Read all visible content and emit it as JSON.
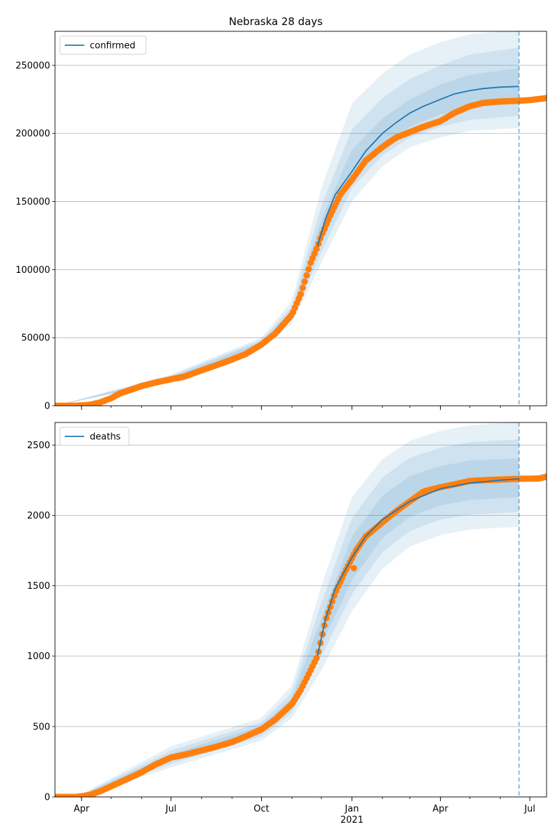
{
  "figure": {
    "title": "Nebraska 28 days"
  },
  "colors": {
    "line": "#1f77b4",
    "observed": "#ff7f0e",
    "band": "#1f77b4",
    "grid": "#b0b0b0",
    "axis": "#000000",
    "cutoff": "#1f77b4"
  },
  "chart_data": [
    {
      "type": "line",
      "panel": "top",
      "title": "Nebraska 28 days",
      "legend": {
        "label": "confirmed",
        "placement": "top-left"
      },
      "grid": "horizontal",
      "xlabel": "",
      "ylabel": "",
      "ylim": [
        0,
        275000
      ],
      "yticks": [
        0,
        50000,
        100000,
        150000,
        200000,
        250000
      ],
      "ytick_labels": [
        "0",
        "50000",
        "100000",
        "150000",
        "200000",
        "250000"
      ],
      "forecast_start": "2020-11-27",
      "forecast_end": "2021-06-20",
      "observed_end": "2021-07-18",
      "observed_series": [
        [
          "2020-03-05",
          0
        ],
        [
          "2020-03-20",
          30
        ],
        [
          "2020-04-01",
          250
        ],
        [
          "2020-04-10",
          800
        ],
        [
          "2020-04-20",
          2500
        ],
        [
          "2020-05-01",
          5500
        ],
        [
          "2020-05-10",
          9000
        ],
        [
          "2020-05-20",
          11500
        ],
        [
          "2020-06-01",
          14500
        ],
        [
          "2020-06-15",
          17000
        ],
        [
          "2020-07-01",
          19500
        ],
        [
          "2020-07-15",
          21500
        ],
        [
          "2020-08-01",
          26000
        ],
        [
          "2020-08-15",
          29500
        ],
        [
          "2020-09-01",
          34000
        ],
        [
          "2020-09-15",
          38000
        ],
        [
          "2020-10-01",
          45000
        ],
        [
          "2020-10-15",
          53000
        ],
        [
          "2020-11-01",
          67000
        ],
        [
          "2020-11-10",
          82000
        ],
        [
          "2020-11-20",
          105000
        ],
        [
          "2020-11-27",
          117000
        ],
        [
          "2020-12-01",
          125000
        ],
        [
          "2020-12-10",
          140000
        ],
        [
          "2020-12-20",
          155000
        ],
        [
          "2021-01-01",
          166000
        ],
        [
          "2021-01-15",
          180000
        ],
        [
          "2021-02-01",
          190000
        ],
        [
          "2021-02-15",
          197000
        ],
        [
          "2021-03-01",
          201000
        ],
        [
          "2021-03-15",
          205000
        ],
        [
          "2021-04-01",
          209000
        ],
        [
          "2021-04-15",
          215000
        ],
        [
          "2021-05-01",
          220000
        ],
        [
          "2021-05-15",
          222500
        ],
        [
          "2021-06-01",
          223500
        ],
        [
          "2021-06-20",
          224000
        ],
        [
          "2021-07-01",
          224500
        ],
        [
          "2021-07-18",
          226000
        ]
      ],
      "forecast_median": [
        [
          "2020-11-27",
          117000
        ],
        [
          "2020-12-05",
          137000
        ],
        [
          "2020-12-15",
          155000
        ],
        [
          "2021-01-01",
          172000
        ],
        [
          "2021-01-15",
          187000
        ],
        [
          "2021-02-01",
          200000
        ],
        [
          "2021-02-15",
          208000
        ],
        [
          "2021-03-01",
          215000
        ],
        [
          "2021-03-15",
          220000
        ],
        [
          "2021-04-01",
          225000
        ],
        [
          "2021-04-15",
          229000
        ],
        [
          "2021-05-01",
          231500
        ],
        [
          "2021-05-15",
          233000
        ],
        [
          "2021-06-01",
          234000
        ],
        [
          "2021-06-20",
          234500
        ]
      ],
      "bands": [
        {
          "lower": [
            [
              "2020-03-05",
              0
            ],
            [
              "2020-07-01",
              17500
            ],
            [
              "2020-10-01",
              42000
            ],
            [
              "2020-11-01",
              60000
            ],
            [
              "2020-12-01",
              105000
            ],
            [
              "2021-01-01",
              150000
            ],
            [
              "2021-02-01",
              176000
            ],
            [
              "2021-03-01",
              190000
            ],
            [
              "2021-04-01",
              197000
            ],
            [
              "2021-05-01",
              202000
            ],
            [
              "2021-06-20",
              204000
            ]
          ],
          "upper": [
            [
              "2020-03-05",
              0
            ],
            [
              "2020-07-01",
              23000
            ],
            [
              "2020-10-01",
              50000
            ],
            [
              "2020-11-01",
              77000
            ],
            [
              "2020-12-01",
              160000
            ],
            [
              "2021-01-01",
              222000
            ],
            [
              "2021-02-01",
              244000
            ],
            [
              "2021-03-01",
              258000
            ],
            [
              "2021-04-01",
              267000
            ],
            [
              "2021-05-01",
              273000
            ],
            [
              "2021-06-20",
              276000
            ]
          ]
        },
        {
          "lower": [
            [
              "2020-03-05",
              0
            ],
            [
              "2020-07-01",
              18200
            ],
            [
              "2020-10-01",
              43500
            ],
            [
              "2020-11-01",
              63000
            ],
            [
              "2020-12-01",
              113000
            ],
            [
              "2021-01-01",
              160000
            ],
            [
              "2021-02-01",
              184000
            ],
            [
              "2021-03-01",
              197000
            ],
            [
              "2021-04-01",
              205000
            ],
            [
              "2021-05-01",
              210000
            ],
            [
              "2021-06-20",
              213000
            ]
          ],
          "upper": [
            [
              "2020-03-05",
              0
            ],
            [
              "2020-07-01",
              22000
            ],
            [
              "2020-10-01",
              48500
            ],
            [
              "2020-11-01",
              73000
            ],
            [
              "2020-12-01",
              147000
            ],
            [
              "2021-01-01",
              203000
            ],
            [
              "2021-02-01",
              226000
            ],
            [
              "2021-03-01",
              240000
            ],
            [
              "2021-04-01",
              250000
            ],
            [
              "2021-05-01",
              258000
            ],
            [
              "2021-06-20",
              263000
            ]
          ]
        },
        {
          "lower": [
            [
              "2020-03-05",
              0
            ],
            [
              "2020-07-01",
              18800
            ],
            [
              "2020-10-01",
              44500
            ],
            [
              "2020-11-01",
              65500
            ],
            [
              "2020-12-01",
              120000
            ],
            [
              "2021-01-01",
              167000
            ],
            [
              "2021-02-01",
              191000
            ],
            [
              "2021-03-01",
              205000
            ],
            [
              "2021-04-01",
              214000
            ],
            [
              "2021-05-01",
              219000
            ],
            [
              "2021-06-20",
              222000
            ]
          ],
          "upper": [
            [
              "2020-03-05",
              0
            ],
            [
              "2020-07-01",
              21000
            ],
            [
              "2020-10-01",
              47000
            ],
            [
              "2020-11-01",
              70000
            ],
            [
              "2020-12-01",
              137000
            ],
            [
              "2021-01-01",
              188000
            ],
            [
              "2021-02-01",
              211000
            ],
            [
              "2021-03-01",
              225000
            ],
            [
              "2021-04-01",
              236000
            ],
            [
              "2021-05-01",
              243000
            ],
            [
              "2021-06-20",
              248000
            ]
          ]
        }
      ]
    },
    {
      "type": "line",
      "panel": "bottom",
      "title": "",
      "legend": {
        "label": "deaths",
        "placement": "top-left"
      },
      "grid": "horizontal",
      "xlabel": "",
      "ylabel": "",
      "ylim": [
        0,
        2660
      ],
      "yticks": [
        0,
        500,
        1000,
        1500,
        2000,
        2500
      ],
      "ytick_labels": [
        "0",
        "500",
        "1000",
        "1500",
        "2000",
        "2500"
      ],
      "xticks": [
        "2020-04-01",
        "2020-07-01",
        "2020-10-01",
        "2021-01-01",
        "2021-04-01",
        "2021-07-01"
      ],
      "xtick_labels": [
        "Apr",
        "Jul",
        "Oct",
        "Jan",
        "Apr",
        "Jul"
      ],
      "xtick_sublabel": {
        "at": "2021-01-01",
        "text": "2021"
      },
      "xlim": [
        "2020-03-05",
        "2021-07-18"
      ],
      "forecast_start": "2020-11-27",
      "forecast_end": "2021-06-20",
      "observed_end": "2021-07-18",
      "observed_series": [
        [
          "2020-03-05",
          0
        ],
        [
          "2020-03-25",
          0
        ],
        [
          "2020-04-01",
          5
        ],
        [
          "2020-04-10",
          15
        ],
        [
          "2020-04-20",
          40
        ],
        [
          "2020-05-01",
          75
        ],
        [
          "2020-05-15",
          120
        ],
        [
          "2020-06-01",
          175
        ],
        [
          "2020-06-15",
          230
        ],
        [
          "2020-07-01",
          280
        ],
        [
          "2020-07-15",
          300
        ],
        [
          "2020-08-01",
          330
        ],
        [
          "2020-08-15",
          355
        ],
        [
          "2020-09-01",
          390
        ],
        [
          "2020-09-15",
          430
        ],
        [
          "2020-10-01",
          480
        ],
        [
          "2020-10-15",
          550
        ],
        [
          "2020-11-01",
          660
        ],
        [
          "2020-11-10",
          760
        ],
        [
          "2020-11-20",
          900
        ],
        [
          "2020-11-27",
          1000
        ],
        [
          "2020-12-05",
          1250
        ],
        [
          "2020-12-15",
          1450
        ],
        [
          "2020-12-25",
          1600
        ],
        [
          "2021-01-05",
          1750
        ],
        [
          "2021-01-15",
          1850
        ],
        [
          "2021-02-01",
          1950
        ],
        [
          "2021-02-15",
          2030
        ],
        [
          "2021-03-01",
          2100
        ],
        [
          "2021-03-15",
          2170
        ],
        [
          "2021-04-01",
          2200
        ],
        [
          "2021-04-15",
          2220
        ],
        [
          "2021-05-01",
          2245
        ],
        [
          "2021-05-15",
          2250
        ],
        [
          "2021-06-01",
          2255
        ],
        [
          "2021-06-20",
          2260
        ],
        [
          "2021-07-10",
          2262
        ],
        [
          "2021-07-18",
          2275
        ]
      ],
      "outliers": [
        [
          "2021-01-03",
          1625
        ]
      ],
      "forecast_median": [
        [
          "2020-11-27",
          1000
        ],
        [
          "2020-12-05",
          1260
        ],
        [
          "2020-12-15",
          1480
        ],
        [
          "2021-01-01",
          1700
        ],
        [
          "2021-01-15",
          1850
        ],
        [
          "2021-02-01",
          1970
        ],
        [
          "2021-03-01",
          2100
        ],
        [
          "2021-04-01",
          2190
        ],
        [
          "2021-05-01",
          2230
        ],
        [
          "2021-06-01",
          2250
        ],
        [
          "2021-06-20",
          2260
        ]
      ],
      "bands": [
        {
          "lower": [
            [
              "2020-03-05",
              0
            ],
            [
              "2020-04-01",
              5
            ],
            [
              "2020-07-01",
              210
            ],
            [
              "2020-10-01",
              400
            ],
            [
              "2020-11-01",
              560
            ],
            [
              "2020-12-01",
              900
            ],
            [
              "2021-01-01",
              1320
            ],
            [
              "2021-02-01",
              1620
            ],
            [
              "2021-03-01",
              1780
            ],
            [
              "2021-04-01",
              1860
            ],
            [
              "2021-05-01",
              1900
            ],
            [
              "2021-06-20",
              1920
            ]
          ],
          "upper": [
            [
              "2020-03-05",
              0
            ],
            [
              "2020-04-01",
              20
            ],
            [
              "2020-07-01",
              360
            ],
            [
              "2020-10-01",
              560
            ],
            [
              "2020-11-01",
              790
            ],
            [
              "2020-12-01",
              1500
            ],
            [
              "2021-01-01",
              2130
            ],
            [
              "2021-02-01",
              2400
            ],
            [
              "2021-03-01",
              2530
            ],
            [
              "2021-04-01",
              2600
            ],
            [
              "2021-05-01",
              2640
            ],
            [
              "2021-06-20",
              2665
            ]
          ]
        },
        {
          "lower": [
            [
              "2020-03-05",
              0
            ],
            [
              "2020-04-01",
              7
            ],
            [
              "2020-07-01",
              235
            ],
            [
              "2020-10-01",
              430
            ],
            [
              "2020-11-01",
              600
            ],
            [
              "2020-12-01",
              1000
            ],
            [
              "2021-01-01",
              1440
            ],
            [
              "2021-02-01",
              1740
            ],
            [
              "2021-03-01",
              1890
            ],
            [
              "2021-04-01",
              1970
            ],
            [
              "2021-05-01",
              2005
            ],
            [
              "2021-06-20",
              2025
            ]
          ],
          "upper": [
            [
              "2020-03-05",
              0
            ],
            [
              "2020-04-01",
              16
            ],
            [
              "2020-07-01",
              330
            ],
            [
              "2020-10-01",
              530
            ],
            [
              "2020-11-01",
              740
            ],
            [
              "2020-12-01",
              1380
            ],
            [
              "2021-01-01",
              1980
            ],
            [
              "2021-02-01",
              2270
            ],
            [
              "2021-03-01",
              2410
            ],
            [
              "2021-04-01",
              2480
            ],
            [
              "2021-05-01",
              2520
            ],
            [
              "2021-06-20",
              2540
            ]
          ]
        },
        {
          "lower": [
            [
              "2020-03-05",
              0
            ],
            [
              "2020-04-01",
              9
            ],
            [
              "2020-07-01",
              255
            ],
            [
              "2020-10-01",
              455
            ],
            [
              "2020-11-01",
              640
            ],
            [
              "2020-12-01",
              1080
            ],
            [
              "2021-01-01",
              1540
            ],
            [
              "2021-02-01",
              1840
            ],
            [
              "2021-03-01",
              1990
            ],
            [
              "2021-04-01",
              2070
            ],
            [
              "2021-05-01",
              2110
            ],
            [
              "2021-06-20",
              2130
            ]
          ],
          "upper": [
            [
              "2020-03-05",
              0
            ],
            [
              "2020-04-01",
              13
            ],
            [
              "2020-07-01",
              305
            ],
            [
              "2020-10-01",
              505
            ],
            [
              "2020-11-01",
              700
            ],
            [
              "2020-12-01",
              1270
            ],
            [
              "2021-01-01",
              1850
            ],
            [
              "2021-02-01",
              2140
            ],
            [
              "2021-03-01",
              2280
            ],
            [
              "2021-04-01",
              2350
            ],
            [
              "2021-05-01",
              2390
            ],
            [
              "2021-06-20",
              2405
            ]
          ]
        }
      ]
    }
  ]
}
